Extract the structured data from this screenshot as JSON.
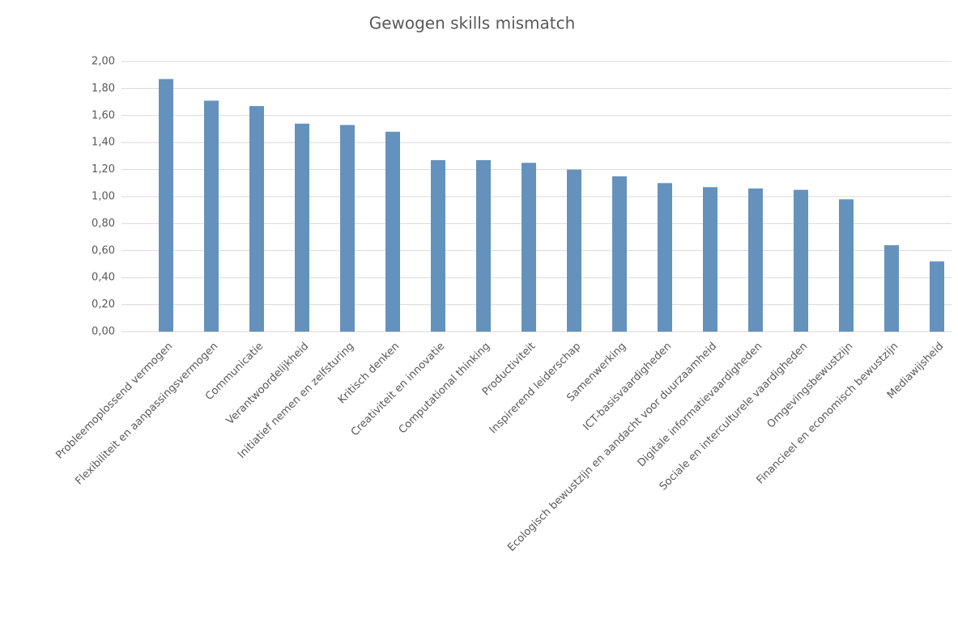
{
  "chart_data": {
    "type": "bar",
    "title": "Gewogen skills mismatch",
    "categories": [
      "Probleemoplossend vermogen",
      "Flexibiliteit en aanpassingsvermogen",
      "Communicatie",
      "Verantwoordelijkheid",
      "Initiatief nemen en zelfsturing",
      "Kritisch denken",
      "Creativiteit en innovatie",
      "Computational thinking",
      "Productiviteit",
      "Inspirerend leiderschap",
      "Samenwerking",
      "ICT-basisvaardigheden",
      "Ecologisch bewustzijn en aandacht voor duurzaamheid",
      "Digitale informatievaardigheden",
      "Sociale en interculturele vaardigheden",
      "Omgevingsbewustzijn",
      "Financieel en economisch bewustzijn",
      "Mediawijsheid"
    ],
    "values": [
      1.87,
      1.71,
      1.67,
      1.54,
      1.53,
      1.48,
      1.27,
      1.27,
      1.25,
      1.2,
      1.15,
      1.1,
      1.07,
      1.06,
      1.05,
      0.98,
      0.64,
      0.52
    ],
    "color": "#6592bd",
    "ylim": [
      0,
      2
    ],
    "yticks": [
      {
        "value": 0,
        "label": "0,00"
      },
      {
        "value": 0.2,
        "label": "0,20"
      },
      {
        "value": 0.4,
        "label": "0,40"
      },
      {
        "value": 0.6,
        "label": "0,60"
      },
      {
        "value": 0.8,
        "label": "0,80"
      },
      {
        "value": 1,
        "label": "1,00"
      },
      {
        "value": 1.2,
        "label": "1,20"
      },
      {
        "value": 1.4,
        "label": "1,40"
      },
      {
        "value": 1.6,
        "label": "1,60"
      },
      {
        "value": 1.8,
        "label": "1,80"
      },
      {
        "value": 2,
        "label": "2,00"
      }
    ],
    "grid": true
  }
}
